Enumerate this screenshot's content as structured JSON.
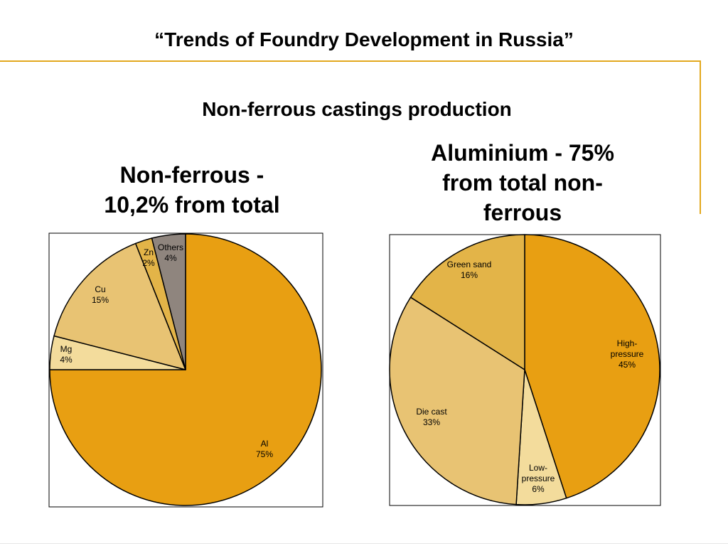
{
  "slide": {
    "title": "“Trends of Foundry Development in Russia”",
    "subtitle": "Non-ferrous castings production"
  },
  "charts": {
    "left": {
      "heading_line1": "Non-ferrous -",
      "heading_line2": "10,2% from total"
    },
    "right": {
      "heading_line1": "Aluminium - 75%",
      "heading_line2": "from total non-",
      "heading_line3": "ferrous"
    }
  },
  "chart_data": [
    {
      "type": "pie",
      "title": "Non-ferrous - 10,2% from total",
      "start_angle_deg": 0,
      "direction": "clockwise",
      "slices": [
        {
          "label": "Al",
          "value": 75,
          "value_label": "75%",
          "color": "#e89f12"
        },
        {
          "label": "Mg",
          "value": 4,
          "value_label": "4%",
          "color": "#f3dc9c"
        },
        {
          "label": "Cu",
          "value": 15,
          "value_label": "15%",
          "color": "#e8c373"
        },
        {
          "label": "Zn",
          "value": 2,
          "value_label": "2%",
          "color": "#e3b448"
        },
        {
          "label": "Others",
          "value": 4,
          "value_label": "4%",
          "color": "#8f857e"
        }
      ]
    },
    {
      "type": "pie",
      "title": "Aluminium - 75% from total non-ferrous",
      "start_angle_deg": 0,
      "direction": "clockwise",
      "slices": [
        {
          "label": "High-pressure",
          "label_lines": [
            "High-",
            "pressure"
          ],
          "value": 45,
          "value_label": "45%",
          "color": "#e89f12"
        },
        {
          "label": "Low-pressure",
          "label_lines": [
            "Low-",
            "pressure"
          ],
          "value": 6,
          "value_label": "6%",
          "color": "#f3dc9c"
        },
        {
          "label": "Die cast",
          "label_lines": [
            "Die cast"
          ],
          "value": 33,
          "value_label": "33%",
          "color": "#e8c373"
        },
        {
          "label": "Green sand",
          "label_lines": [
            "Green sand"
          ],
          "value": 16,
          "value_label": "16%",
          "color": "#e3b448"
        }
      ]
    }
  ]
}
